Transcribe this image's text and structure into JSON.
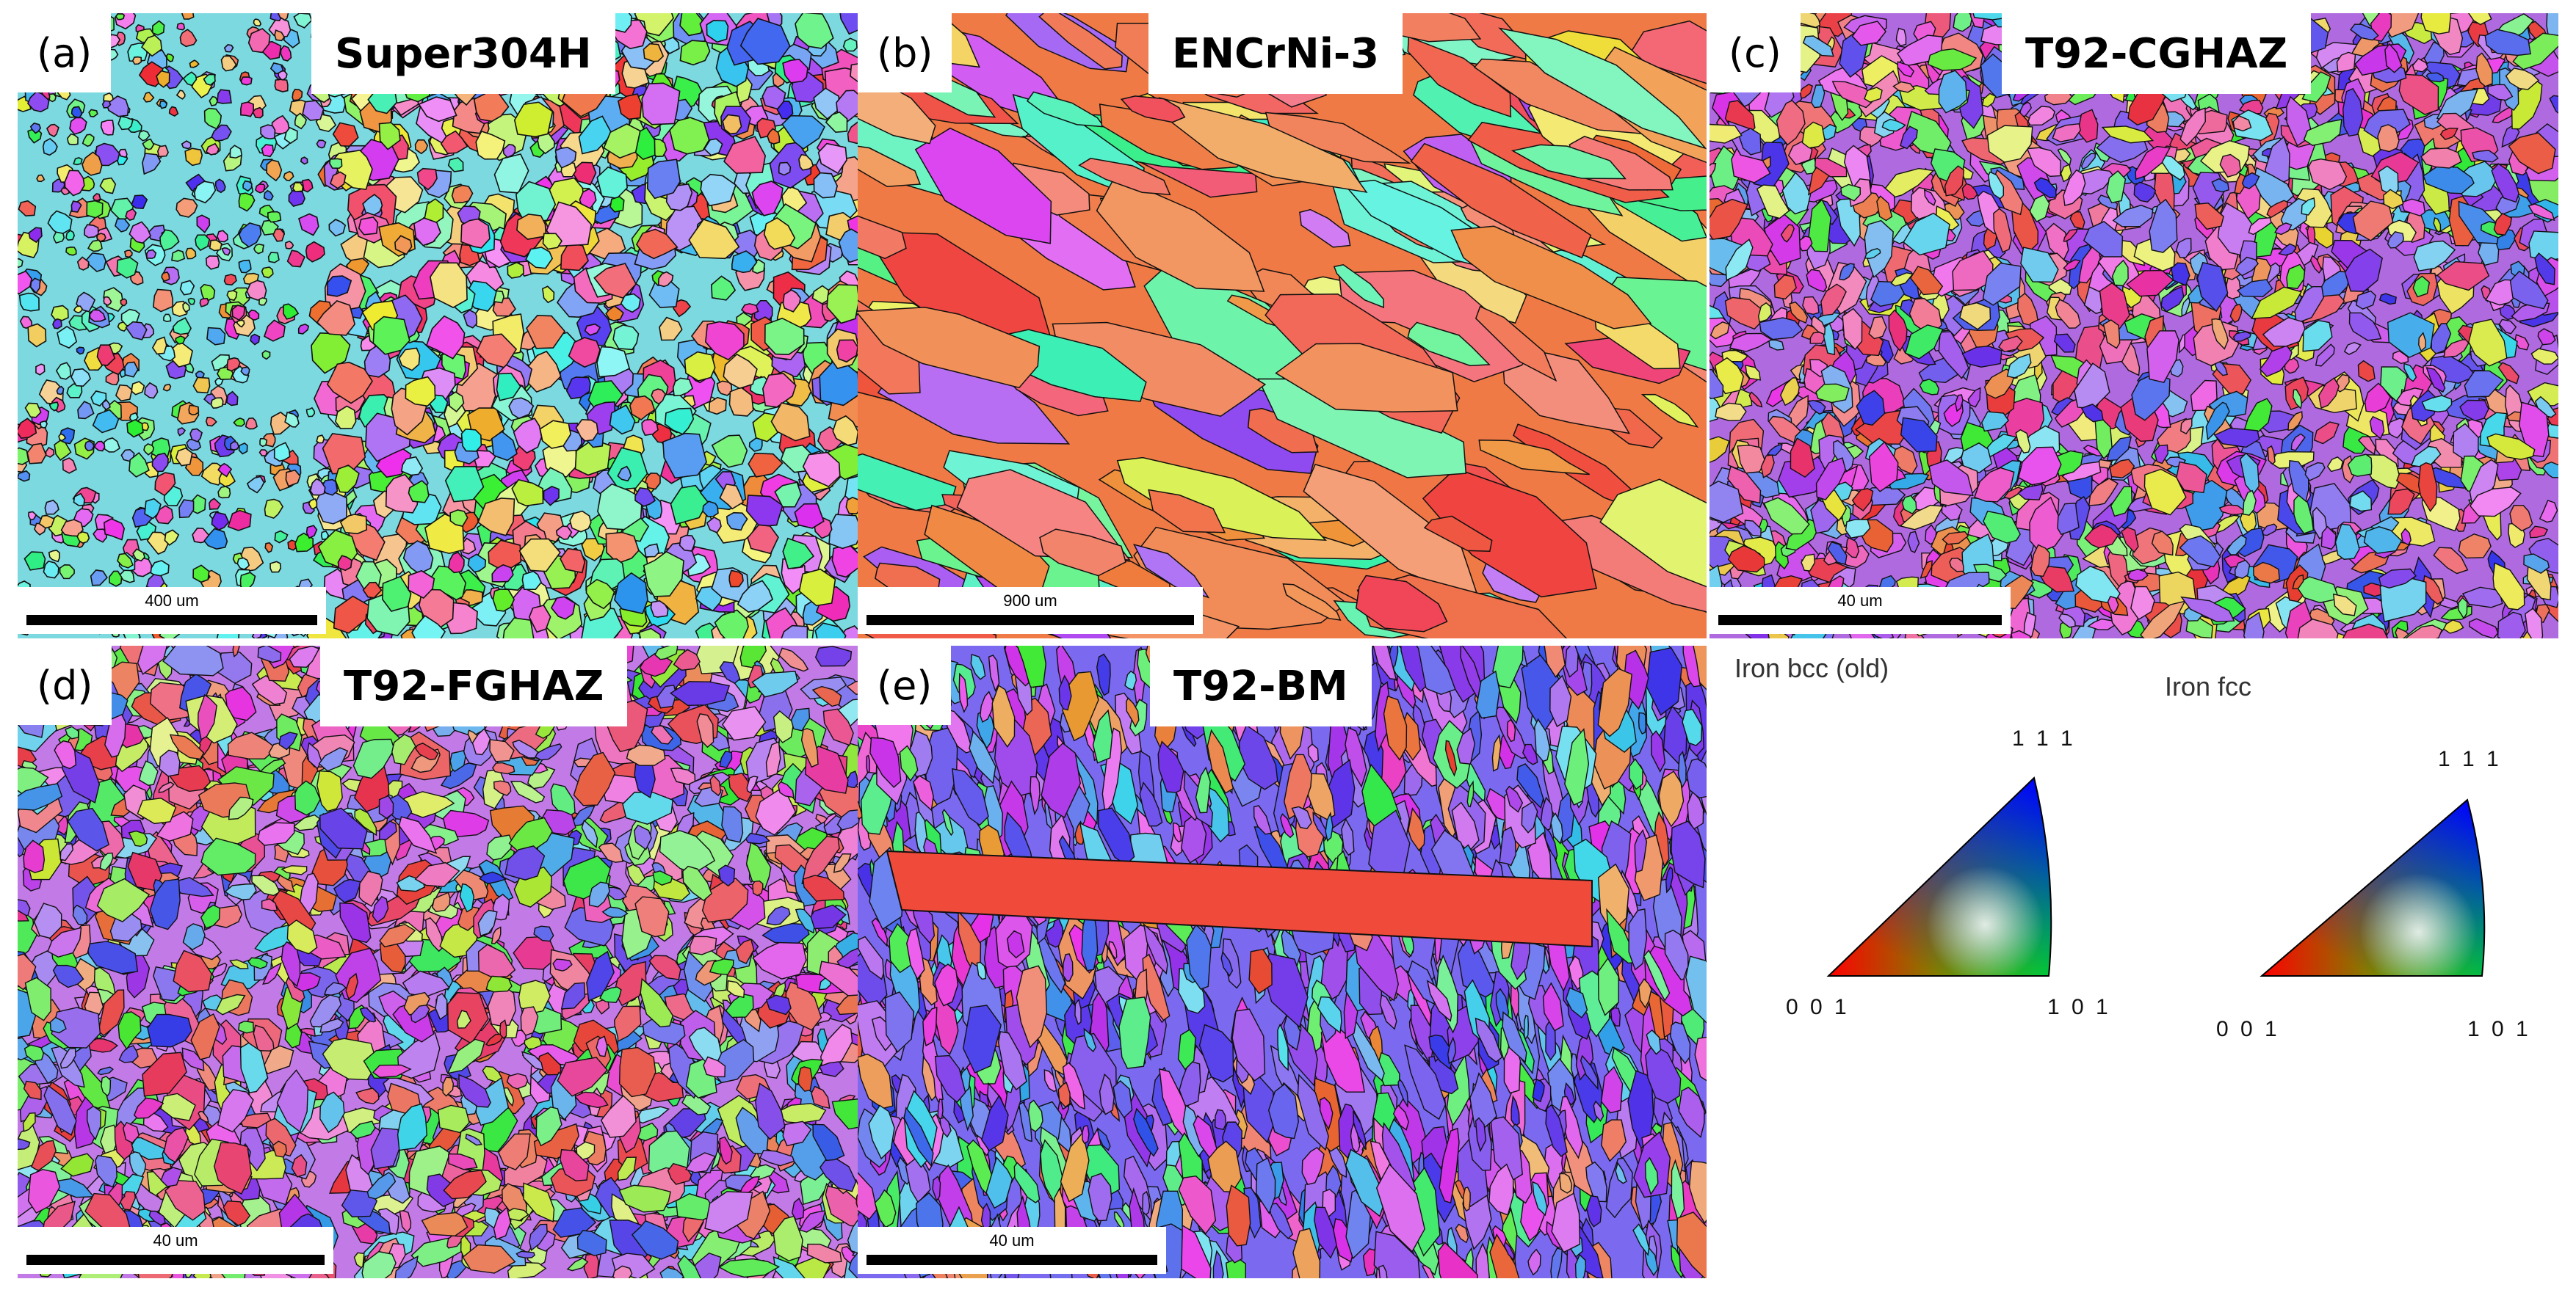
{
  "panels": [
    {
      "label": "(a)",
      "title": "Super304H",
      "scale": "400 um"
    },
    {
      "label": "(b)",
      "title": "ENCrNi-3",
      "scale": "900 um"
    },
    {
      "label": "(c)",
      "title": "T92-CGHAZ",
      "scale": "40 um"
    },
    {
      "label": "(d)",
      "title": "T92-FGHAZ",
      "scale": "40 um"
    },
    {
      "label": "(e)",
      "title": "T92-BM",
      "scale": "40 um"
    }
  ],
  "legend": {
    "bcc": {
      "title": "Iron bcc (old)",
      "top": "1 1 1",
      "left": "0 0 1",
      "right": "1 0 1"
    },
    "fcc": {
      "title": "Iron fcc",
      "top": "1 1 1",
      "left": "0 0 1",
      "right": "1 0 1"
    },
    "colors": {
      "001": "#ff0000",
      "101": "#00ff00",
      "111": "#0000ff"
    }
  }
}
